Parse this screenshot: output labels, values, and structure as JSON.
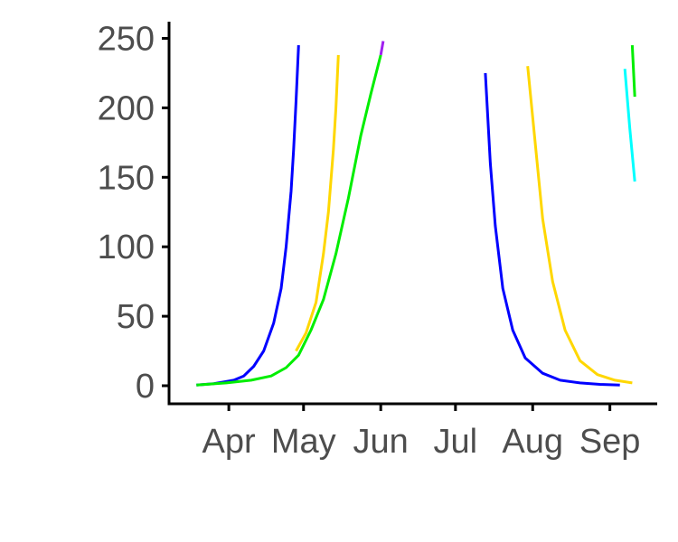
{
  "chart_data": {
    "type": "line",
    "title": "",
    "xlabel": "",
    "ylabel": "",
    "x_axis": {
      "kind": "date",
      "range": [
        "2020-03-08",
        "2020-09-20"
      ],
      "ticks": [
        {
          "date": "2020-04-01",
          "label": "Apr"
        },
        {
          "date": "2020-05-01",
          "label": "May"
        },
        {
          "date": "2020-06-01",
          "label": "Jun"
        },
        {
          "date": "2020-07-01",
          "label": "Jul"
        },
        {
          "date": "2020-08-01",
          "label": "Aug"
        },
        {
          "date": "2020-09-01",
          "label": "Sep"
        }
      ]
    },
    "y_axis": {
      "range": [
        -13,
        262
      ],
      "ticks": [
        0,
        50,
        100,
        150,
        200,
        250
      ]
    },
    "grid": false,
    "legend": "none",
    "series": [
      {
        "color": "#0000ff",
        "points": [
          [
            "2020-03-19",
            0.5
          ],
          [
            "2020-03-26",
            1.5
          ],
          [
            "2020-04-03",
            4
          ],
          [
            "2020-04-07",
            7
          ],
          [
            "2020-04-11",
            14
          ],
          [
            "2020-04-15",
            25
          ],
          [
            "2020-04-19",
            45
          ],
          [
            "2020-04-22",
            70
          ],
          [
            "2020-04-24",
            100
          ],
          [
            "2020-04-26",
            140
          ],
          [
            "2020-04-27",
            170
          ],
          [
            "2020-04-28",
            205
          ],
          [
            "2020-04-29",
            245
          ]
        ]
      },
      {
        "color": "#0000ff",
        "points": [
          [
            "2020-07-13",
            225
          ],
          [
            "2020-07-15",
            160
          ],
          [
            "2020-07-17",
            115
          ],
          [
            "2020-07-20",
            70
          ],
          [
            "2020-07-24",
            40
          ],
          [
            "2020-07-29",
            20
          ],
          [
            "2020-08-05",
            9
          ],
          [
            "2020-08-12",
            4
          ],
          [
            "2020-08-20",
            2
          ],
          [
            "2020-08-28",
            1
          ],
          [
            "2020-09-05",
            0.5
          ]
        ]
      },
      {
        "color": "#ffd700",
        "points": [
          [
            "2020-04-28",
            25
          ],
          [
            "2020-05-02",
            38
          ],
          [
            "2020-05-06",
            60
          ],
          [
            "2020-05-09",
            95
          ],
          [
            "2020-05-11",
            125
          ],
          [
            "2020-05-13",
            170
          ],
          [
            "2020-05-14",
            200
          ],
          [
            "2020-05-15",
            238
          ]
        ]
      },
      {
        "color": "#ffd700",
        "points": [
          [
            "2020-07-30",
            230
          ],
          [
            "2020-08-02",
            175
          ],
          [
            "2020-08-05",
            120
          ],
          [
            "2020-08-09",
            75
          ],
          [
            "2020-08-14",
            40
          ],
          [
            "2020-08-20",
            18
          ],
          [
            "2020-08-27",
            8
          ],
          [
            "2020-09-03",
            4
          ],
          [
            "2020-09-10",
            2
          ]
        ]
      },
      {
        "color": "#00ee00",
        "points": [
          [
            "2020-03-19",
            0.5
          ],
          [
            "2020-03-31",
            2
          ],
          [
            "2020-04-10",
            4
          ],
          [
            "2020-04-18",
            7
          ],
          [
            "2020-04-24",
            13
          ],
          [
            "2020-04-29",
            22
          ],
          [
            "2020-05-04",
            40
          ],
          [
            "2020-05-09",
            62
          ],
          [
            "2020-05-14",
            95
          ],
          [
            "2020-05-19",
            135
          ],
          [
            "2020-05-24",
            180
          ],
          [
            "2020-05-28",
            210
          ],
          [
            "2020-06-01",
            238
          ]
        ]
      },
      {
        "color": "#a020f0",
        "points": [
          [
            "2020-06-01",
            238
          ],
          [
            "2020-06-02",
            248
          ]
        ]
      },
      {
        "color": "#00ffff",
        "points": [
          [
            "2020-09-07",
            228
          ],
          [
            "2020-09-09",
            185
          ],
          [
            "2020-09-11",
            147
          ]
        ]
      },
      {
        "color": "#00ee00",
        "points": [
          [
            "2020-09-10",
            245
          ],
          [
            "2020-09-11",
            208
          ]
        ]
      }
    ]
  }
}
